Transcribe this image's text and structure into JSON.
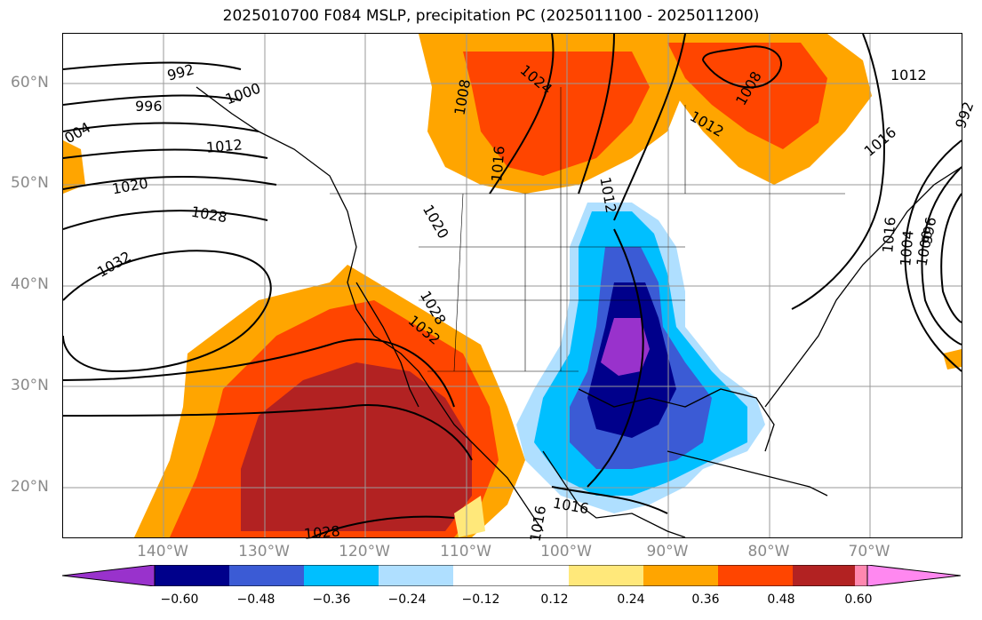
{
  "title": "2025010700 F084 MSLP, precipitation PC (2025011100 - 2025011200)",
  "map": {
    "lat_labels": [
      "60°N",
      "50°N",
      "40°N",
      "30°N",
      "20°N"
    ],
    "lon_labels": [
      "140°W",
      "130°W",
      "120°W",
      "110°W",
      "100°W",
      "90°W",
      "80°W",
      "70°W"
    ],
    "isobar_labels": [
      "992",
      "996",
      "1000",
      "1004",
      "1008",
      "1012",
      "1016",
      "1020",
      "1024",
      "1028",
      "1032"
    ],
    "contour_labels_visible": [
      "992",
      "996",
      "1000",
      "004",
      "1012",
      "1020",
      "1028",
      "1032",
      "1008",
      "1016",
      "1024",
      "1008",
      "1012",
      "1016",
      "1012",
      "1020",
      "1028",
      "1032",
      "1028",
      "1016",
      "1016",
      "1012",
      "1016",
      "1004",
      "1000",
      "996",
      "992",
      "1008"
    ]
  },
  "colorbar": {
    "ticks": [
      "−0.60",
      "−0.48",
      "−0.36",
      "−0.24",
      "−0.12",
      "0.12",
      "0.24",
      "0.36",
      "0.48",
      "0.60"
    ],
    "colors": [
      "#9932cc",
      "#00008b",
      "#3b5bd5",
      "#00bfff",
      "#afdfff",
      "#ffffff",
      "#ffe87a",
      "#ffa500",
      "#ff4500",
      "#b22222",
      "#ff88b0",
      "#ff88f0"
    ]
  },
  "chart_data": {
    "type": "heatmap",
    "title": "2025010700 F084 MSLP, precipitation PC (2025011100 - 2025011200)",
    "xlabel": "",
    "ylabel": "",
    "lon_ticks": [
      "140°W",
      "130°W",
      "120°W",
      "110°W",
      "100°W",
      "90°W",
      "80°W",
      "70°W"
    ],
    "lat_ticks": [
      "20°N",
      "30°N",
      "40°N",
      "50°N",
      "60°N"
    ],
    "lon_range": [
      -151,
      -62
    ],
    "lat_range": [
      15,
      65
    ],
    "grid": true,
    "colorbar_levels": [
      -0.6,
      -0.48,
      -0.36,
      -0.24,
      -0.12,
      0.12,
      0.24,
      0.36,
      0.48,
      0.6
    ]
  }
}
